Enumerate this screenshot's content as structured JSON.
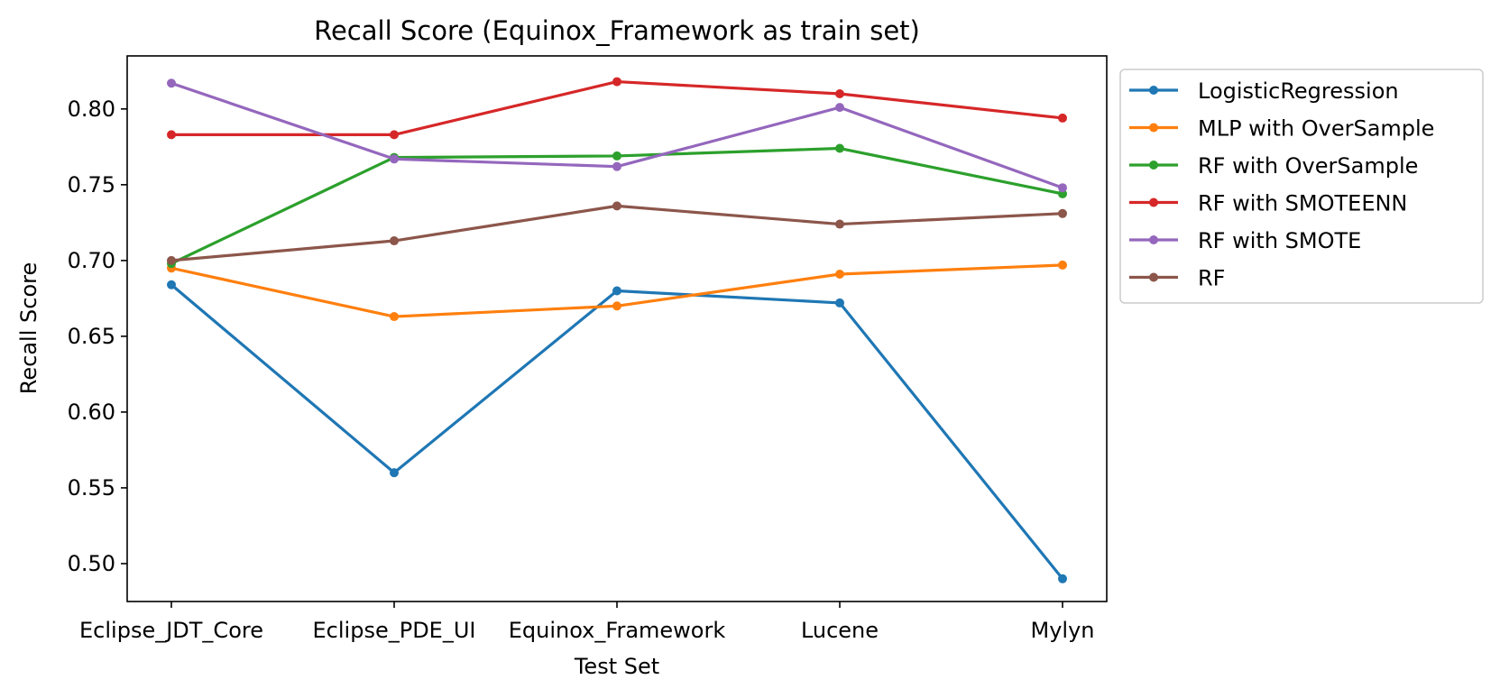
{
  "chart_data": {
    "type": "line",
    "title": "Recall Score (Equinox_Framework as train set)",
    "xlabel": "Test Set",
    "ylabel": "Recall Score",
    "categories": [
      "Eclipse_JDT_Core",
      "Eclipse_PDE_UI",
      "Equinox_Framework",
      "Lucene",
      "Mylyn"
    ],
    "ylim": [
      0.475,
      0.835
    ],
    "yticks": [
      0.5,
      0.55,
      0.6,
      0.65,
      0.7,
      0.75,
      0.8
    ],
    "ytick_labels": [
      "0.50",
      "0.55",
      "0.60",
      "0.65",
      "0.70",
      "0.75",
      "0.80"
    ],
    "grid": false,
    "legend_position": "outside-right-top",
    "series": [
      {
        "name": "LogisticRegression",
        "color": "#1f77b4",
        "values": [
          0.684,
          0.56,
          0.68,
          0.672,
          0.49
        ]
      },
      {
        "name": "MLP with OverSample",
        "color": "#ff7f0e",
        "values": [
          0.695,
          0.663,
          0.67,
          0.691,
          0.697
        ]
      },
      {
        "name": "RF with OverSample",
        "color": "#2ca02c",
        "values": [
          0.698,
          0.768,
          0.769,
          0.774,
          0.744
        ]
      },
      {
        "name": "RF with SMOTEENN",
        "color": "#d62728",
        "values": [
          0.783,
          0.783,
          0.818,
          0.81,
          0.794
        ]
      },
      {
        "name": "RF with SMOTE",
        "color": "#9467bd",
        "values": [
          0.817,
          0.767,
          0.762,
          0.801,
          0.748
        ]
      },
      {
        "name": "RF",
        "color": "#8c564b",
        "values": [
          0.7,
          0.713,
          0.736,
          0.724,
          0.731
        ]
      }
    ]
  }
}
